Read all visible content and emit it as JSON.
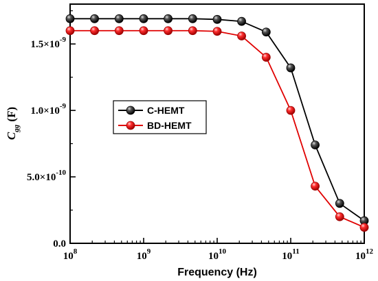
{
  "chart_data": {
    "type": "line",
    "title": "",
    "xlabel": "Frequency (Hz)",
    "ylabel_main": "C",
    "ylabel_sub": "gg",
    "ylabel_unit": " (F)",
    "xscale": "log",
    "xlim": [
      100000000.0,
      1000000000000.0
    ],
    "ylim": [
      0,
      1.8e-09
    ],
    "grid": false,
    "legend_position": "center-left",
    "x_ticks": [
      {
        "base": "10",
        "exp": "8"
      },
      {
        "base": "10",
        "exp": "9"
      },
      {
        "base": "10",
        "exp": "10"
      },
      {
        "base": "10",
        "exp": "11"
      },
      {
        "base": "10",
        "exp": "12"
      }
    ],
    "y_ticks": [
      {
        "value": 0,
        "label": "0.0",
        "mant": "",
        "exp": ""
      },
      {
        "value": 5e-10,
        "label": "",
        "mant": "5.0×10",
        "exp": "-10"
      },
      {
        "value": 1e-09,
        "label": "",
        "mant": "1.0×10",
        "exp": "-9"
      },
      {
        "value": 1.5e-09,
        "label": "",
        "mant": "1.5×10",
        "exp": "-9"
      }
    ],
    "x": [
      100000000.0,
      215000000.0,
      464000000.0,
      1000000000.0,
      2150000000.0,
      4640000000.0,
      10000000000.0,
      21500000000.0,
      46400000000.0,
      100000000000.0,
      215000000000.0,
      464000000000.0,
      1000000000000.0
    ],
    "series": [
      {
        "name": "C-HEMT",
        "color": "#000000",
        "marker_color": "#1a1a1a",
        "values": [
          1.69e-09,
          1.69e-09,
          1.69e-09,
          1.69e-09,
          1.69e-09,
          1.69e-09,
          1.685e-09,
          1.67e-09,
          1.59e-09,
          1.32e-09,
          7.4e-10,
          3e-10,
          1.7e-10
        ]
      },
      {
        "name": "BD-HEMT",
        "color": "#e00000",
        "marker_color": "#e00000",
        "values": [
          1.6e-09,
          1.6e-09,
          1.6e-09,
          1.6e-09,
          1.6e-09,
          1.6e-09,
          1.595e-09,
          1.56e-09,
          1.4e-09,
          1e-09,
          4.3e-10,
          2e-10,
          1.2e-10
        ]
      }
    ]
  }
}
